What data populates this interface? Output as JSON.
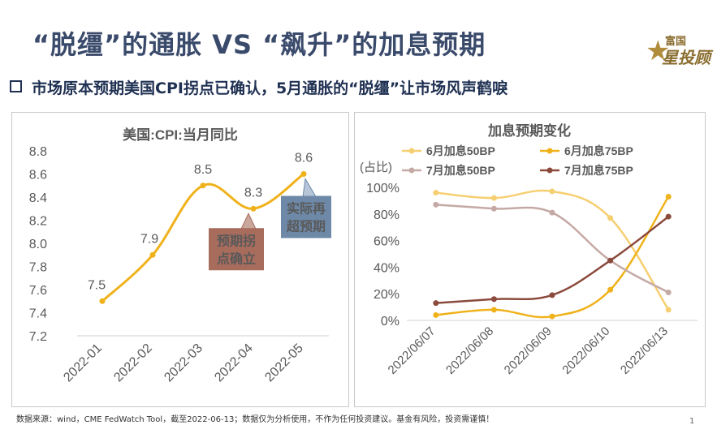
{
  "header": {
    "title": "“脱缰”的通胀 VS “飙升”的加息预期",
    "subtitle": "市场原本预期美国CPI拐点已确认，5月通胀的“脱缰”让市场风声鹤唳"
  },
  "logo": {
    "line1": "富国",
    "line2": "投顾",
    "star": "星"
  },
  "footer": {
    "source": "数据来源：wind，CME FedWatch Tool，截至2022-06-13；数据仅为分析使用，不作为任何投资建议。基金有风险，投资需谨慎！",
    "page_number": "1"
  },
  "colors": {
    "cpi_line": "#f0b21b",
    "annotation_brown": "#a86c5c",
    "annotation_blue": "#6e89a8",
    "s_june50": "#f6cf72",
    "s_june75": "#f0b21b",
    "s_july50": "#c4a9a5",
    "s_july75": "#8b4a3c"
  },
  "chart_data": [
    {
      "type": "line",
      "title": "美国:CPI:当月同比",
      "categories": [
        "2022-01",
        "2022-02",
        "2022-03",
        "2022-04",
        "2022-05"
      ],
      "values": [
        7.5,
        7.9,
        8.5,
        8.3,
        8.6
      ],
      "data_labels": [
        "7.5",
        "7.9",
        "8.5",
        "8.3",
        "8.6"
      ],
      "ylim": [
        7.2,
        8.8
      ],
      "yticks": [
        "7.2",
        "7.4",
        "7.6",
        "7.8",
        "8.0",
        "8.2",
        "8.4",
        "8.6",
        "8.8"
      ],
      "ytick_values": [
        7.2,
        7.4,
        7.6,
        7.8,
        8.0,
        8.2,
        8.4,
        8.6,
        8.8
      ],
      "grid": false,
      "annotations": [
        {
          "text_lines": [
            "预期拐",
            "点确立"
          ],
          "points_to": "2022-04"
        },
        {
          "text_lines": [
            "实际再",
            "超预期"
          ],
          "points_to": "2022-05"
        }
      ]
    },
    {
      "type": "line",
      "title": "加息预期变化",
      "ylabel": "(占比)",
      "categories": [
        "2022/06/07",
        "2022/06/08",
        "2022/06/09",
        "2022/06/10",
        "2022/06/13"
      ],
      "ylim": [
        0,
        100
      ],
      "yticks": [
        "0%",
        "20%",
        "40%",
        "60%",
        "80%",
        "100%"
      ],
      "ytick_values": [
        0,
        20,
        40,
        60,
        80,
        100
      ],
      "grid": false,
      "legend_position": "top",
      "series": [
        {
          "name": "6月加息50BP",
          "values": [
            96,
            92,
            97,
            77,
            8
          ]
        },
        {
          "name": "6月加息75BP",
          "values": [
            4,
            8,
            3,
            23,
            93
          ]
        },
        {
          "name": "7月加息50BP",
          "values": [
            87,
            84,
            81,
            45,
            21
          ]
        },
        {
          "name": "7月加息75BP",
          "values": [
            13,
            16,
            19,
            45,
            78
          ]
        }
      ]
    }
  ]
}
